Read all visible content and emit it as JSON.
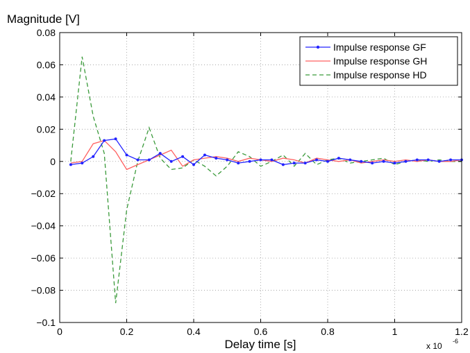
{
  "chart_data": {
    "type": "line",
    "title": "",
    "ylabel": "Magnitude [V]",
    "xlabel": "Delay time [s]",
    "x_scale_label": "x 10",
    "x_scale_exponent": "-6",
    "xlim": [
      0,
      1.2
    ],
    "ylim": [
      -0.1,
      0.08
    ],
    "xticks": [
      0,
      0.2,
      0.4,
      0.6,
      0.8,
      1,
      1.2
    ],
    "xtick_labels": [
      "0",
      "0.2",
      "0.4",
      "0.6",
      "0.8",
      "1",
      "1.2"
    ],
    "yticks": [
      -0.1,
      -0.08,
      -0.06,
      -0.04,
      -0.02,
      0,
      0.02,
      0.04,
      0.06,
      0.08
    ],
    "ytick_labels": [
      "−0.1",
      "−0.08",
      "−0.06",
      "−0.04",
      "−0.02",
      "0",
      "0.02",
      "0.04",
      "0.06",
      "0.08"
    ],
    "grid": true,
    "legend_position": "top-right",
    "series": [
      {
        "name": "Impulse response GF",
        "color": "#2222ff",
        "style": "solid-dot-markers",
        "x": [
          0.033,
          0.067,
          0.1,
          0.133,
          0.167,
          0.2,
          0.233,
          0.267,
          0.3,
          0.333,
          0.367,
          0.4,
          0.433,
          0.467,
          0.5,
          0.533,
          0.567,
          0.6,
          0.633,
          0.667,
          0.7,
          0.733,
          0.767,
          0.8,
          0.833,
          0.867,
          0.9,
          0.933,
          0.967,
          1.0,
          1.033,
          1.067,
          1.1,
          1.133,
          1.167,
          1.2
        ],
        "y": [
          -0.002,
          -0.001,
          0.003,
          0.013,
          0.014,
          0.004,
          0.001,
          0.001,
          0.005,
          0.0,
          0.003,
          -0.002,
          0.004,
          0.002,
          0.001,
          -0.001,
          0.0,
          0.001,
          0.001,
          -0.002,
          -0.001,
          -0.001,
          0.001,
          0.0,
          0.002,
          0.001,
          0.0,
          -0.001,
          0.0,
          -0.001,
          0.0,
          0.001,
          0.001,
          0.0,
          0.001,
          0.001
        ]
      },
      {
        "name": "Impulse response GH",
        "color": "#ff6060",
        "style": "solid",
        "x": [
          0.033,
          0.067,
          0.1,
          0.133,
          0.167,
          0.2,
          0.233,
          0.267,
          0.3,
          0.333,
          0.367,
          0.4,
          0.433,
          0.467,
          0.5,
          0.533,
          0.567,
          0.6,
          0.633,
          0.667,
          0.7,
          0.733,
          0.767,
          0.8,
          0.833,
          0.867,
          0.9,
          0.933,
          0.967,
          1.0,
          1.033,
          1.067,
          1.1,
          1.133,
          1.167,
          1.2
        ],
        "y": [
          -0.001,
          0.0,
          0.011,
          0.013,
          0.006,
          -0.005,
          -0.002,
          0.001,
          0.004,
          0.007,
          -0.003,
          0.001,
          0.002,
          0.003,
          0.002,
          0.0,
          0.002,
          0.001,
          0.0,
          0.002,
          0.001,
          -0.001,
          0.002,
          0.001,
          0.0,
          0.001,
          -0.001,
          0.0,
          0.001,
          0.0,
          0.001,
          0.0,
          0.001,
          0.0,
          0.0,
          0.001
        ]
      },
      {
        "name": "Impulse response HD",
        "color": "#3a9a3a",
        "style": "dashed",
        "x": [
          0.033,
          0.067,
          0.1,
          0.133,
          0.167,
          0.2,
          0.233,
          0.267,
          0.3,
          0.333,
          0.367,
          0.4,
          0.433,
          0.467,
          0.5,
          0.533,
          0.567,
          0.6,
          0.633,
          0.667,
          0.7,
          0.733,
          0.767,
          0.8,
          0.833,
          0.867,
          0.9,
          0.933,
          0.967,
          1.0,
          1.033,
          1.067,
          1.1,
          1.133,
          1.167,
          1.2
        ],
        "y": [
          0.0,
          0.065,
          0.028,
          0.005,
          -0.088,
          -0.03,
          0.0,
          0.021,
          0.002,
          -0.005,
          -0.004,
          0.001,
          -0.003,
          -0.009,
          -0.003,
          0.006,
          0.003,
          -0.003,
          0.0,
          0.004,
          -0.003,
          0.005,
          -0.002,
          0.001,
          0.002,
          -0.001,
          0.0,
          0.001,
          0.002,
          -0.002,
          0.0,
          0.001,
          0.0,
          0.001,
          0.0,
          0.0
        ]
      }
    ]
  }
}
